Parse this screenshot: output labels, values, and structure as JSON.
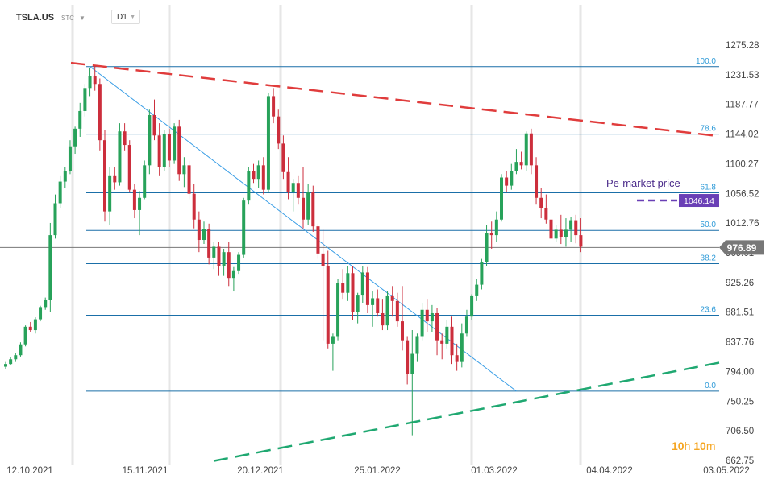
{
  "header": {
    "symbol": "TSLA.US",
    "sub": "STC",
    "timeframe": "D1"
  },
  "logo": {
    "a": "10",
    "b": "h",
    "c": "10",
    "d": "m"
  },
  "colors": {
    "up": "#27a25a",
    "down": "#cc2e3c",
    "fib": "#1a6fa8",
    "fib_label": "#2f9bd8",
    "resistance": "#e03c3c",
    "support": "#1fa871",
    "trend": "#3a9ee6",
    "premarket": "#6a40b6",
    "price_line": "#777777"
  },
  "chart_data": {
    "type": "candlestick",
    "symbol": "TSLA.US",
    "timeframe": "D1",
    "y_ticks": [
      1275.28,
      1231.53,
      1187.77,
      1144.02,
      1100.27,
      1056.52,
      1012.76,
      969.01,
      925.26,
      881.51,
      837.76,
      794.0,
      750.25,
      706.5,
      662.75
    ],
    "y_tick_labels": [
      "1275.28",
      "1231.53",
      "1187.77",
      "1144.02",
      "1100.27",
      "1056.52",
      "1012.76",
      "969.01",
      "925.26",
      "881.51",
      "837.76",
      "794.00",
      "750.25",
      "706.50",
      "662.75"
    ],
    "x_ticks": [
      "12.10.2021",
      "15.11.2021",
      "20.12.2021",
      "25.01.2022",
      "01.03.2022",
      "04.04.2022",
      "03.05.2022"
    ],
    "fib_levels": [
      {
        "label": "100.0",
        "value": 1243.5
      },
      {
        "label": "78.6",
        "value": 1144.0
      },
      {
        "label": "61.8",
        "value": 1057.5
      },
      {
        "label": "50.0",
        "value": 1002.0
      },
      {
        "label": "38.2",
        "value": 953.0
      },
      {
        "label": "23.6",
        "value": 877.0
      },
      {
        "label": "0.0",
        "value": 765.0
      }
    ],
    "current_price": {
      "label": "976.89",
      "value": 976.89
    },
    "premarket": {
      "text": "Pe-market price",
      "label": "1046.14",
      "value": 1046.14
    },
    "candles": [
      [
        801,
        808,
        797,
        805
      ],
      [
        805,
        815,
        803,
        812
      ],
      [
        812,
        821,
        808,
        818
      ],
      [
        818,
        837,
        816,
        834
      ],
      [
        834,
        862,
        831,
        860
      ],
      [
        860,
        867,
        852,
        855
      ],
      [
        855,
        874,
        850,
        871
      ],
      [
        871,
        891,
        868,
        889
      ],
      [
        889,
        903,
        885,
        899
      ],
      [
        899,
        1013,
        882,
        995
      ],
      [
        995,
        1055,
        990,
        1042
      ],
      [
        1042,
        1082,
        1035,
        1074
      ],
      [
        1074,
        1096,
        1065,
        1090
      ],
      [
        1090,
        1135,
        1085,
        1126
      ],
      [
        1126,
        1155,
        1115,
        1152
      ],
      [
        1152,
        1190,
        1140,
        1178
      ],
      [
        1178,
        1218,
        1170,
        1212
      ],
      [
        1212,
        1242,
        1200,
        1230
      ],
      [
        1230,
        1244,
        1208,
        1218
      ],
      [
        1218,
        1226,
        1120,
        1135
      ],
      [
        1135,
        1150,
        1015,
        1030
      ],
      [
        1030,
        1095,
        1010,
        1082
      ],
      [
        1082,
        1095,
        1062,
        1073
      ],
      [
        1073,
        1160,
        1068,
        1148
      ],
      [
        1148,
        1160,
        1120,
        1128
      ],
      [
        1128,
        1135,
        1058,
        1062
      ],
      [
        1062,
        1070,
        1020,
        1032
      ],
      [
        1032,
        1060,
        995,
        1050
      ],
      [
        1050,
        1105,
        1048,
        1098
      ],
      [
        1098,
        1180,
        1085,
        1172
      ],
      [
        1172,
        1195,
        1135,
        1142
      ],
      [
        1142,
        1160,
        1082,
        1095
      ],
      [
        1095,
        1150,
        1090,
        1144
      ],
      [
        1144,
        1152,
        1095,
        1105
      ],
      [
        1105,
        1160,
        1100,
        1155
      ],
      [
        1155,
        1165,
        1075,
        1085
      ],
      [
        1085,
        1110,
        1066,
        1098
      ],
      [
        1098,
        1105,
        1048,
        1056
      ],
      [
        1056,
        1070,
        1005,
        1018
      ],
      [
        1018,
        1030,
        970,
        988
      ],
      [
        988,
        1015,
        982,
        1004
      ],
      [
        1004,
        1012,
        952,
        962
      ],
      [
        962,
        985,
        945,
        978
      ],
      [
        978,
        985,
        935,
        950
      ],
      [
        950,
        975,
        935,
        970
      ],
      [
        970,
        985,
        920,
        932
      ],
      [
        932,
        948,
        912,
        942
      ],
      [
        942,
        970,
        938,
        966
      ],
      [
        966,
        1050,
        962,
        1046
      ],
      [
        1046,
        1095,
        1040,
        1090
      ],
      [
        1090,
        1100,
        1072,
        1078
      ],
      [
        1078,
        1105,
        1065,
        1098
      ],
      [
        1098,
        1110,
        1055,
        1062
      ],
      [
        1062,
        1205,
        1058,
        1200
      ],
      [
        1200,
        1212,
        1160,
        1170
      ],
      [
        1170,
        1180,
        1122,
        1130
      ],
      [
        1130,
        1142,
        1078,
        1088
      ],
      [
        1088,
        1110,
        1048,
        1058
      ],
      [
        1058,
        1078,
        1030,
        1072
      ],
      [
        1072,
        1082,
        1040,
        1050
      ],
      [
        1050,
        1095,
        1005,
        1018
      ],
      [
        1018,
        1070,
        1010,
        1058
      ],
      [
        1058,
        1068,
        1000,
        1008
      ],
      [
        1008,
        1012,
        960,
        968
      ],
      [
        968,
        1003,
        840,
        950
      ],
      [
        950,
        972,
        828,
        835
      ],
      [
        835,
        850,
        795,
        845
      ],
      [
        845,
        930,
        840,
        924
      ],
      [
        924,
        945,
        900,
        910
      ],
      [
        910,
        950,
        898,
        939
      ],
      [
        939,
        950,
        870,
        882
      ],
      [
        882,
        910,
        865,
        906
      ],
      [
        906,
        950,
        895,
        940
      ],
      [
        940,
        948,
        880,
        892
      ],
      [
        892,
        912,
        860,
        902
      ],
      [
        902,
        915,
        875,
        880
      ],
      [
        880,
        900,
        855,
        862
      ],
      [
        862,
        912,
        855,
        905
      ],
      [
        905,
        920,
        875,
        898
      ],
      [
        898,
        910,
        860,
        868
      ],
      [
        868,
        920,
        825,
        840
      ],
      [
        840,
        845,
        775,
        790
      ],
      [
        790,
        855,
        700,
        820
      ],
      [
        820,
        850,
        808,
        845
      ],
      [
        845,
        895,
        840,
        885
      ],
      [
        885,
        900,
        852,
        868
      ],
      [
        868,
        892,
        852,
        880
      ],
      [
        880,
        888,
        818,
        840
      ],
      [
        840,
        850,
        812,
        835
      ],
      [
        835,
        870,
        828,
        860
      ],
      [
        860,
        875,
        805,
        818
      ],
      [
        818,
        835,
        795,
        808
      ],
      [
        808,
        865,
        800,
        850
      ],
      [
        850,
        885,
        845,
        875
      ],
      [
        875,
        908,
        870,
        905
      ],
      [
        905,
        930,
        898,
        922
      ],
      [
        922,
        960,
        915,
        955
      ],
      [
        955,
        1010,
        950,
        998
      ],
      [
        998,
        1015,
        975,
        995
      ],
      [
        995,
        1030,
        985,
        1018
      ],
      [
        1018,
        1085,
        1015,
        1080
      ],
      [
        1080,
        1090,
        1058,
        1068
      ],
      [
        1068,
        1100,
        1062,
        1090
      ],
      [
        1090,
        1122,
        1085,
        1103
      ],
      [
        1103,
        1118,
        1092,
        1098
      ],
      [
        1098,
        1148,
        1090,
        1145
      ],
      [
        1145,
        1152,
        1085,
        1098
      ],
      [
        1098,
        1110,
        1040,
        1050
      ],
      [
        1050,
        1065,
        1020,
        1035
      ],
      [
        1035,
        1055,
        1012,
        1018
      ],
      [
        1018,
        1025,
        978,
        990
      ],
      [
        990,
        1010,
        985,
        1003
      ],
      [
        1003,
        1025,
        982,
        992
      ],
      [
        992,
        1020,
        978,
        1003
      ],
      [
        1003,
        1022,
        985,
        1017
      ],
      [
        1017,
        1025,
        983,
        995
      ],
      [
        995,
        1020,
        970,
        978
      ]
    ]
  }
}
